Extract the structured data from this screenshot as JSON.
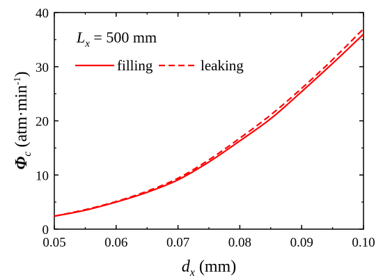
{
  "chart_data": {
    "type": "line",
    "title": "",
    "annotation": {
      "var": "L",
      "sub": "x",
      "rest": " = 500 mm"
    },
    "xlabel": {
      "var": "d",
      "sub": "x",
      "rest": " (mm)"
    },
    "ylabel": {
      "var": "Φ",
      "sub": "c",
      "unit": " (atm·min",
      "sup": "-1",
      "close": ")"
    },
    "xlim": [
      0.05,
      0.1
    ],
    "ylim": [
      0,
      40
    ],
    "xticks": [
      "0.05",
      "0.06",
      "0.07",
      "0.08",
      "0.09",
      "0.10"
    ],
    "yticks": [
      "0",
      "10",
      "20",
      "30",
      "40"
    ],
    "grid": false,
    "legend_position": "top-left",
    "series": [
      {
        "name": "filling",
        "color": "#ff0000",
        "style": "solid",
        "x": [
          0.05,
          0.055,
          0.06,
          0.065,
          0.07,
          0.075,
          0.08,
          0.085,
          0.09,
          0.095,
          0.1
        ],
        "y": [
          2.4,
          3.5,
          5.0,
          6.8,
          9.1,
          12.4,
          16.3,
          20.4,
          25.4,
          30.6,
          36.0
        ]
      },
      {
        "name": "leaking",
        "color": "#ff0000",
        "style": "dashed",
        "x": [
          0.05,
          0.055,
          0.06,
          0.065,
          0.07,
          0.075,
          0.08,
          0.085,
          0.09,
          0.095,
          0.1
        ],
        "y": [
          2.4,
          3.6,
          5.1,
          7.0,
          9.4,
          12.8,
          16.8,
          21.1,
          26.0,
          31.3,
          37.0
        ]
      }
    ]
  }
}
